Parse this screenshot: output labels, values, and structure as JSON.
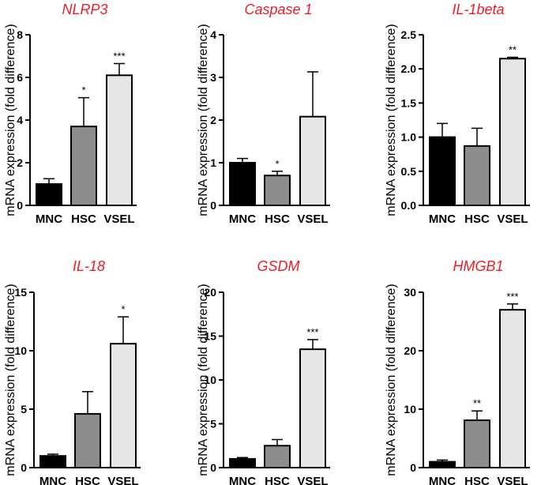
{
  "colors": {
    "title": "#ee1c25",
    "axis": "#000000",
    "bars": [
      "#000000",
      "#8c8c8c",
      "#e6e6e6"
    ]
  },
  "chart_data": [
    {
      "type": "bar",
      "title": "NLRP3",
      "ylabel": "mRNA expression (fold difference)",
      "categories": [
        "MNC",
        "HSC",
        "VSEL"
      ],
      "values": [
        1.0,
        3.7,
        6.1
      ],
      "errors": [
        0.25,
        1.35,
        0.55
      ],
      "significance": [
        "",
        "*",
        "***"
      ],
      "ylim": [
        0,
        8
      ],
      "yticks": [
        0,
        2,
        4,
        6,
        8
      ],
      "ytick_labels": [
        "0",
        "2",
        "4",
        "6",
        "8"
      ]
    },
    {
      "type": "bar",
      "title": "Caspase 1",
      "ylabel": "mRNA expression (fold difference)",
      "categories": [
        "MNC",
        "HSC",
        "VSEL"
      ],
      "values": [
        1.0,
        0.7,
        2.08
      ],
      "errors": [
        0.1,
        0.1,
        1.05
      ],
      "significance": [
        "",
        "*",
        ""
      ],
      "ylim": [
        0,
        4
      ],
      "yticks": [
        0,
        1,
        2,
        3,
        4
      ],
      "ytick_labels": [
        "0",
        "1",
        "2",
        "3",
        "4"
      ]
    },
    {
      "type": "bar",
      "title": "IL-1beta",
      "ylabel": "mRNA expression (fold difference)",
      "categories": [
        "MNC",
        "HSC",
        "VSEL"
      ],
      "values": [
        1.0,
        0.87,
        2.15
      ],
      "errors": [
        0.2,
        0.26,
        0.02
      ],
      "significance": [
        "",
        "",
        "**"
      ],
      "ylim": [
        0,
        2.5
      ],
      "yticks": [
        0,
        0.5,
        1.0,
        1.5,
        2.0,
        2.5
      ],
      "ytick_labels": [
        "0.0",
        "0.5",
        "1.0",
        "1.5",
        "2.0",
        "2.5"
      ]
    },
    {
      "type": "bar",
      "title": "IL-18",
      "ylabel": "mRNA expression (fold difference)",
      "categories": [
        "MNC",
        "HSC",
        "VSEL"
      ],
      "values": [
        1.0,
        4.6,
        10.6
      ],
      "errors": [
        0.15,
        1.9,
        2.3
      ],
      "significance": [
        "",
        "",
        "*"
      ],
      "ylim": [
        0,
        15
      ],
      "yticks": [
        0,
        5,
        10,
        15
      ],
      "ytick_labels": [
        "0",
        "5",
        "10",
        "15"
      ]
    },
    {
      "type": "bar",
      "title": "GSDM",
      "ylabel": "mRNA expression (fold difference)",
      "categories": [
        "MNC",
        "HSC",
        "VSEL"
      ],
      "values": [
        1.0,
        2.5,
        13.5
      ],
      "errors": [
        0.15,
        0.7,
        1.1
      ],
      "significance": [
        "",
        "",
        "***"
      ],
      "ylim": [
        0,
        20
      ],
      "yticks": [
        0,
        5,
        10,
        15,
        20
      ],
      "ytick_labels": [
        "0",
        "5",
        "10",
        "15",
        "20"
      ]
    },
    {
      "type": "bar",
      "title": "HMGB1",
      "ylabel": "mRNA expression (fold difference)",
      "categories": [
        "MNC",
        "HSC",
        "VSEL"
      ],
      "values": [
        1.0,
        8.1,
        27.0
      ],
      "errors": [
        0.3,
        1.6,
        1.0
      ],
      "significance": [
        "",
        "**",
        "***"
      ],
      "ylim": [
        0,
        30
      ],
      "yticks": [
        0,
        10,
        20,
        30
      ],
      "ytick_labels": [
        "0",
        "10",
        "20",
        "30"
      ]
    }
  ]
}
